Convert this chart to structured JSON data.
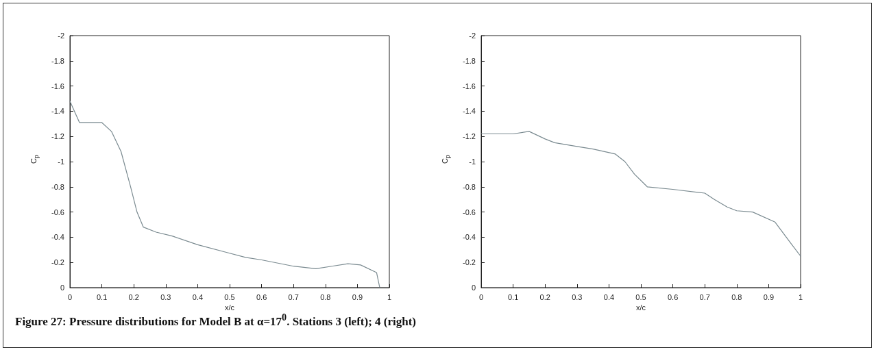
{
  "chart_data": [
    {
      "type": "line",
      "xlabel": "x/c",
      "ylabel": "C$_{p}$",
      "xlim": [
        0,
        1
      ],
      "ylim": [
        0,
        -2
      ],
      "xticks": [
        0,
        0.1,
        0.2,
        0.3,
        0.4,
        0.5,
        0.6,
        0.7,
        0.8,
        0.9,
        1
      ],
      "yticks": [
        -2,
        -1.8,
        -1.6,
        -1.4,
        -1.2,
        -1,
        -0.8,
        -0.6,
        -0.4,
        -0.2,
        0
      ],
      "x": [
        0,
        0.03,
        0.1,
        0.13,
        0.16,
        0.19,
        0.21,
        0.23,
        0.27,
        0.32,
        0.4,
        0.49,
        0.55,
        0.6,
        0.7,
        0.77,
        0.82,
        0.87,
        0.91,
        0.96,
        0.97
      ],
      "series": [
        {
          "color": "#7a8a90",
          "values": [
            -1.48,
            -1.31,
            -1.31,
            -1.24,
            -1.08,
            -0.8,
            -0.6,
            -0.48,
            -0.44,
            -0.41,
            -0.34,
            -0.28,
            -0.24,
            -0.22,
            -0.17,
            -0.15,
            -0.17,
            -0.19,
            -0.18,
            -0.12,
            0
          ]
        }
      ],
      "annotations": [
        "Figure 27: Pressure distributions for Model B at α=17$^{0}$. Stations 3 (left); 4 (right)"
      ]
    },
    {
      "type": "line",
      "xlabel": "x/c",
      "ylabel": "C$_{p}$",
      "xlim": [
        0,
        1
      ],
      "ylim": [
        0,
        -2
      ],
      "xticks": [
        0,
        0.1,
        0.2,
        0.3,
        0.4,
        0.5,
        0.6,
        0.7,
        0.8,
        0.9,
        1
      ],
      "yticks": [
        -2,
        -1.8,
        -1.6,
        -1.4,
        -1.2,
        -1,
        -0.8,
        -0.6,
        -0.4,
        -0.2,
        0
      ],
      "x": [
        0,
        0.1,
        0.15,
        0.2,
        0.23,
        0.3,
        0.35,
        0.42,
        0.45,
        0.48,
        0.52,
        0.6,
        0.7,
        0.73,
        0.77,
        0.8,
        0.85,
        0.92,
        0.97,
        1
      ],
      "series": [
        {
          "color": "#7a8a90",
          "values": [
            -1.22,
            -1.22,
            -1.24,
            -1.18,
            -1.15,
            -1.12,
            -1.1,
            -1.06,
            -1,
            -0.9,
            -0.8,
            -0.78,
            -0.75,
            -0.7,
            -0.64,
            -0.61,
            -0.6,
            -0.52,
            -0.35,
            -0.25
          ]
        }
      ]
    }
  ]
}
